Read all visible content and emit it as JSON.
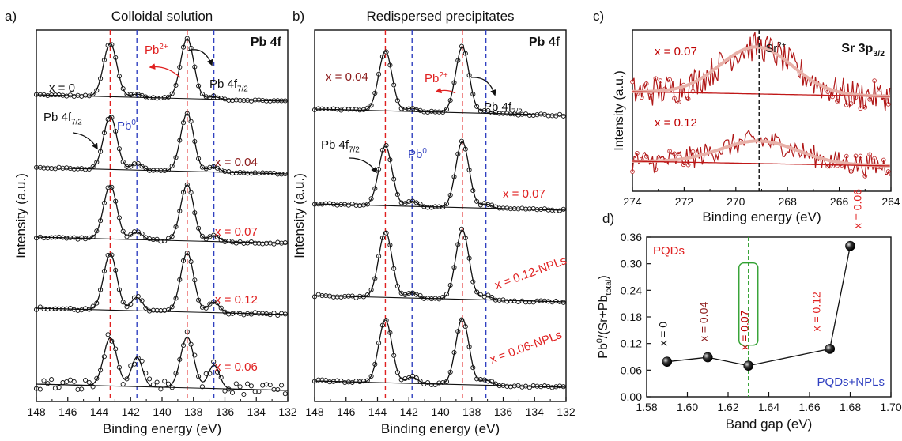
{
  "chart_data": [
    {
      "type": "line",
      "panel_label": "a)",
      "title": "Colloidal solution",
      "core_level": "Pb 4f",
      "xlabel": "Binding energy (eV)",
      "ylabel": "Intensity (a.u.)",
      "xlim": [
        148,
        132
      ],
      "x_ticks": [
        "148",
        "146",
        "144",
        "142",
        "140",
        "138",
        "136",
        "134",
        "132"
      ],
      "reference_lines": [
        {
          "x": 143.3,
          "color": "#e02020",
          "style": "dashed"
        },
        {
          "x": 141.6,
          "color": "#3040c0",
          "style": "dashed"
        },
        {
          "x": 138.4,
          "color": "#e02020",
          "style": "dashed"
        },
        {
          "x": 136.7,
          "color": "#3040c0",
          "style": "dashed"
        }
      ],
      "annotations": {
        "pb2": "Pb",
        "pb2_sup": "2+",
        "pb4f_top": "Pb 4f",
        "pb4f_top_sub": "7/2",
        "pb4f_left": "Pb 4f",
        "pb4f_left_sub": "7/2",
        "pb0": "Pb",
        "pb0_sup": "0"
      },
      "series": [
        {
          "name": "x = 0",
          "label_color": "#111111",
          "peak1_height": 1.0,
          "peak2_height": 1.12,
          "shoulder": 0.06,
          "noise": 0.015
        },
        {
          "name": "x = 0.04",
          "label_color": "#8b1a1a",
          "peak1_height": 1.0,
          "peak2_height": 1.08,
          "shoulder": 0.12,
          "noise": 0.015
        },
        {
          "name": "x = 0.07",
          "label_color": "#e02020",
          "peak1_height": 1.0,
          "peak2_height": 1.05,
          "shoulder": 0.14,
          "noise": 0.02
        },
        {
          "name": "x = 0.12",
          "label_color": "#e02020",
          "peak1_height": 1.05,
          "peak2_height": 1.1,
          "shoulder": 0.25,
          "noise": 0.03
        },
        {
          "name": "x = 0.06",
          "label_color": "#e02020",
          "peak1_height": 0.9,
          "peak2_height": 0.95,
          "shoulder": 0.55,
          "noise": 0.12
        }
      ]
    },
    {
      "type": "line",
      "panel_label": "b)",
      "title": "Redispersed precipitates",
      "core_level": "Pb 4f",
      "xlabel": "Binding energy (eV)",
      "ylabel": "Intensity (a.u.)",
      "xlim": [
        148,
        132
      ],
      "x_ticks": [
        "148",
        "146",
        "144",
        "142",
        "140",
        "138",
        "136",
        "134",
        "132"
      ],
      "reference_lines": [
        {
          "x": 143.5,
          "color": "#e02020",
          "style": "dashed"
        },
        {
          "x": 141.8,
          "color": "#3040c0",
          "style": "dashed"
        },
        {
          "x": 138.6,
          "color": "#e02020",
          "style": "dashed"
        },
        {
          "x": 137.1,
          "color": "#3040c0",
          "style": "dashed"
        }
      ],
      "annotations": {
        "pb2": "Pb",
        "pb2_sup": "2+",
        "pb4f_top": "Pb 4f",
        "pb4f_top_sub": "7/2",
        "pb4f_left": "Pb 4f",
        "pb4f_left_sub": "7/2",
        "pb0": "Pb",
        "pb0_sup": "0"
      },
      "series": [
        {
          "name": "x = 0.04",
          "label_color": "#8b1a1a",
          "peak1_height": 0.95,
          "peak2_height": 1.05,
          "shoulder": 0.05,
          "noise": 0.015
        },
        {
          "name": "x = 0.07",
          "label_color": "#e02020",
          "peak1_height": 0.95,
          "peak2_height": 1.05,
          "shoulder": 0.08,
          "noise": 0.015
        },
        {
          "name": "x = 0.12-NPLs",
          "label_color": "#e02020",
          "peak1_height": 1.05,
          "peak2_height": 1.1,
          "shoulder": 0.08,
          "noise": 0.02
        },
        {
          "name": "x = 0.06-NPLs",
          "label_color": "#e02020",
          "peak1_height": 1.0,
          "peak2_height": 1.05,
          "shoulder": 0.1,
          "noise": 0.02
        }
      ]
    },
    {
      "type": "line",
      "panel_label": "c)",
      "core_level": "Sr 3p",
      "core_level_sub": "3/2",
      "xlabel": "Binding energy (eV)",
      "ylabel": "Intensity (a.u.)",
      "xlim": [
        274,
        264
      ],
      "x_ticks": [
        "274",
        "272",
        "270",
        "268",
        "266",
        "264"
      ],
      "reference_line": {
        "x": 269.1,
        "label": "Sr",
        "label_sup": "2+"
      },
      "series": [
        {
          "name": "x = 0.07",
          "label_color": "#c00000",
          "peak_center": 269.2,
          "peak_height": 0.85,
          "peak_width": 1.4
        },
        {
          "name": "x = 0.12",
          "label_color": "#c00000",
          "peak_center": 269.1,
          "peak_height": 0.55,
          "peak_width": 1.5
        }
      ]
    },
    {
      "type": "line",
      "panel_label": "d)",
      "xlabel": "Band gap (eV)",
      "ylabel": "Pb",
      "ylabel_sup1": "0",
      "ylabel_mid": "/(Sr+Pb",
      "ylabel_sub": "total",
      "ylabel_end": ")",
      "xlim": [
        1.58,
        1.7
      ],
      "ylim": [
        0.0,
        0.36
      ],
      "x_ticks": [
        "1.58",
        "1.60",
        "1.62",
        "1.64",
        "1.66",
        "1.68",
        "1.70"
      ],
      "y_ticks": [
        "0.00",
        "0.06",
        "0.12",
        "0.18",
        "0.24",
        "0.30",
        "0.36"
      ],
      "region_labels": [
        {
          "text": "PQDs",
          "color": "#e02020"
        },
        {
          "text": "PQDs+NPLs",
          "color": "#3040c0"
        }
      ],
      "vertical_line_x": 1.63,
      "points": [
        {
          "x": 1.59,
          "y": 0.079,
          "label": "x = 0",
          "label_color": "#111111"
        },
        {
          "x": 1.61,
          "y": 0.089,
          "label": "x = 0.04",
          "label_color": "#8b1a1a"
        },
        {
          "x": 1.63,
          "y": 0.07,
          "label": "x = 0.07",
          "label_color": "#c00000"
        },
        {
          "x": 1.67,
          "y": 0.108,
          "label": "x = 0.12",
          "label_color": "#e02020"
        },
        {
          "x": 1.68,
          "y": 0.34,
          "label": "x = 0.06",
          "label_color": "#e02020"
        }
      ]
    }
  ]
}
